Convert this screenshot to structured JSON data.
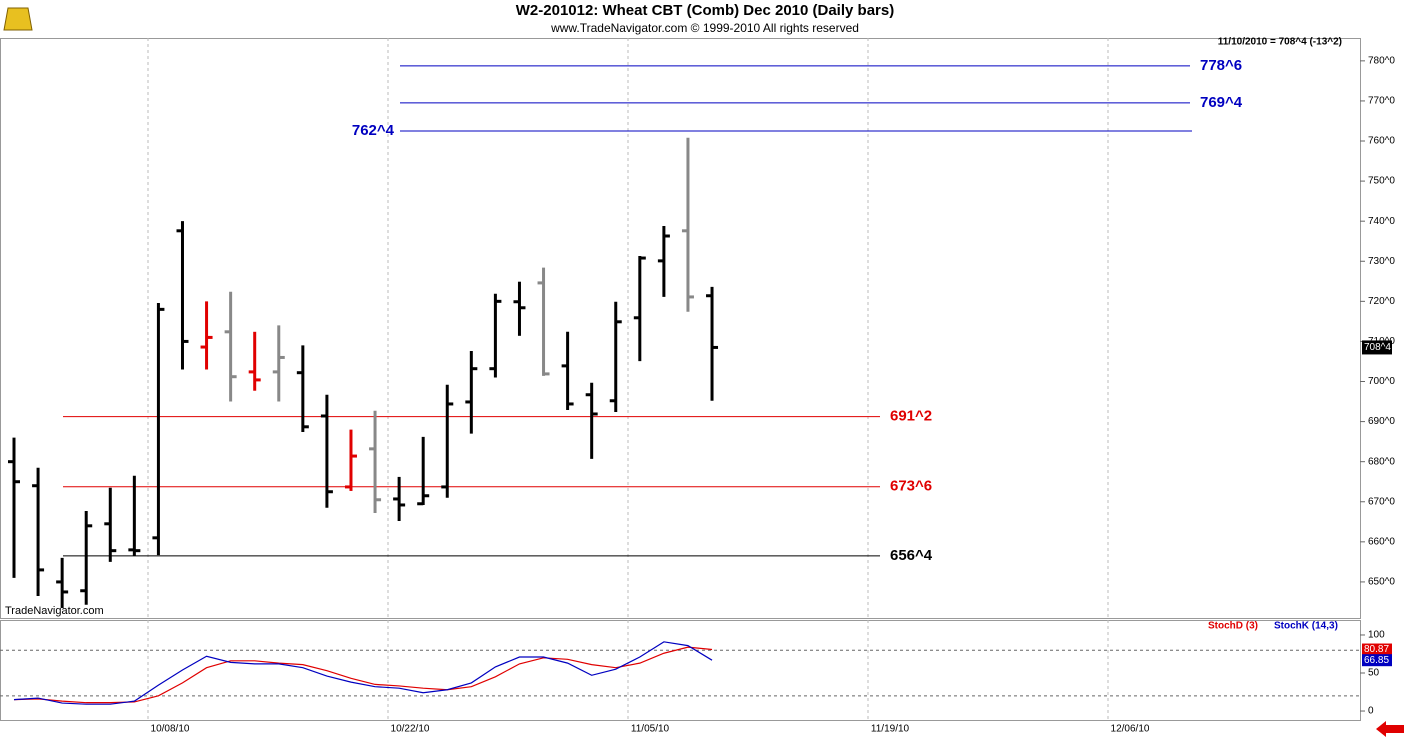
{
  "header": {
    "title": "W2-201012:  Wheat CBT (Comb) Dec 2010  (Daily bars)",
    "subtitle": "www.TradeNavigator.com © 1999-2010 All rights reserved",
    "quote": "11/10/2010 = 708^4 (-13^2)",
    "watermark": "TradeNavigator.com"
  },
  "chart_data": [
    {
      "type": "ohlc",
      "ylim": [
        641,
        785.7
      ],
      "yticks": [
        {
          "value": 650,
          "label": "650^0"
        },
        {
          "value": 660,
          "label": "660^0"
        },
        {
          "value": 670,
          "label": "670^0"
        },
        {
          "value": 680,
          "label": "680^0"
        },
        {
          "value": 690,
          "label": "690^0"
        },
        {
          "value": 700,
          "label": "700^0"
        },
        {
          "value": 710,
          "label": "710^0"
        },
        {
          "value": 720,
          "label": "720^0"
        },
        {
          "value": 730,
          "label": "730^0"
        },
        {
          "value": 740,
          "label": "740^0"
        },
        {
          "value": 750,
          "label": "750^0"
        },
        {
          "value": 760,
          "label": "760^0"
        },
        {
          "value": 770,
          "label": "770^0"
        },
        {
          "value": 780,
          "label": "780^0"
        }
      ],
      "x_labels": [
        "10/08/10",
        "10/22/10",
        "11/05/10",
        "11/19/10",
        "12/06/10"
      ],
      "open": [
        680,
        674,
        650,
        647.8,
        664.5,
        658,
        661,
        737.6,
        708.6,
        712.4,
        702.4,
        702.4,
        702.2,
        691.4,
        673.7,
        683.2,
        670.7,
        669.5,
        673.7,
        694.9,
        703.2,
        719.9,
        724.6,
        703.9,
        696.7,
        695.2,
        715.9,
        730.1,
        737.6,
        721.4
      ],
      "high": [
        686,
        678.5,
        656,
        667.7,
        673.5,
        676.5,
        719.6,
        740,
        720,
        722.4,
        712.4,
        714,
        709,
        696.7,
        688,
        692.7,
        676.2,
        686.2,
        699.2,
        707.6,
        721.9,
        724.9,
        728.4,
        712.4,
        699.7,
        719.9,
        731.3,
        738.8,
        760.8,
        723.6
      ],
      "low": [
        651,
        646.5,
        643.5,
        644.3,
        655,
        656.5,
        656.7,
        703,
        703,
        695,
        697.7,
        695,
        687.4,
        668.5,
        672.7,
        667.2,
        665.2,
        669.2,
        671,
        687,
        701,
        711.4,
        701.4,
        692.9,
        680.7,
        692.4,
        705.1,
        721.1,
        717.4,
        695.2
      ],
      "close": [
        675,
        653,
        647.5,
        664,
        657.8,
        657.8,
        718,
        710,
        711,
        701.2,
        700.4,
        706,
        688.7,
        672.5,
        681.4,
        670.5,
        669.2,
        671.5,
        694.4,
        703.2,
        720,
        718.4,
        701.9,
        694.4,
        691.9,
        714.9,
        730.8,
        736.3,
        721.1,
        708.5
      ],
      "colors": [
        "#000",
        "#000",
        "#000",
        "#000",
        "#000",
        "#000",
        "#000",
        "#000",
        "#e00000",
        "#888",
        "#e00000",
        "#888",
        "#000",
        "#000",
        "#e00000",
        "#888",
        "#000",
        "#000",
        "#000",
        "#000",
        "#000",
        "#000",
        "#888",
        "#000",
        "#000",
        "#000",
        "#000",
        "#000",
        "#888",
        "#000"
      ],
      "last": {
        "value": 708.5,
        "label": "708^4"
      },
      "levels": [
        {
          "value": 778.75,
          "label": "778^6",
          "color": "#0000c0"
        },
        {
          "value": 769.5,
          "label": "769^4",
          "color": "#0000c0"
        },
        {
          "value": 762.5,
          "label": "762^4",
          "color": "#0000c0"
        },
        {
          "value": 691.25,
          "label": "691^2",
          "color": "#e00000"
        },
        {
          "value": 673.75,
          "label": "673^6",
          "color": "#e00000"
        },
        {
          "value": 656.5,
          "label": "656^4",
          "color": "#000000"
        }
      ]
    },
    {
      "type": "line",
      "ylim": [
        -11.8,
        119.7
      ],
      "yticks": [
        0,
        50,
        100
      ],
      "levels": [
        20,
        80
      ],
      "series": [
        {
          "name": "StochD (3)",
          "color": "#e00000",
          "values": [
            15,
            16,
            13,
            11,
            11,
            12,
            20,
            37,
            57,
            66,
            66,
            63,
            61,
            53,
            43,
            35,
            33,
            30,
            28,
            32,
            45,
            62,
            70,
            68,
            61,
            57,
            63,
            76,
            84,
            80.87
          ]
        },
        {
          "name": "StochK (14,3)",
          "color": "#0000c0",
          "values": [
            15,
            17,
            10.5,
            9,
            9,
            13,
            34,
            54,
            72,
            64,
            62,
            62,
            57,
            46,
            38,
            32,
            30,
            24,
            28,
            37,
            58,
            71,
            71,
            63,
            47,
            55,
            71,
            91,
            86,
            66.85
          ]
        }
      ]
    }
  ]
}
